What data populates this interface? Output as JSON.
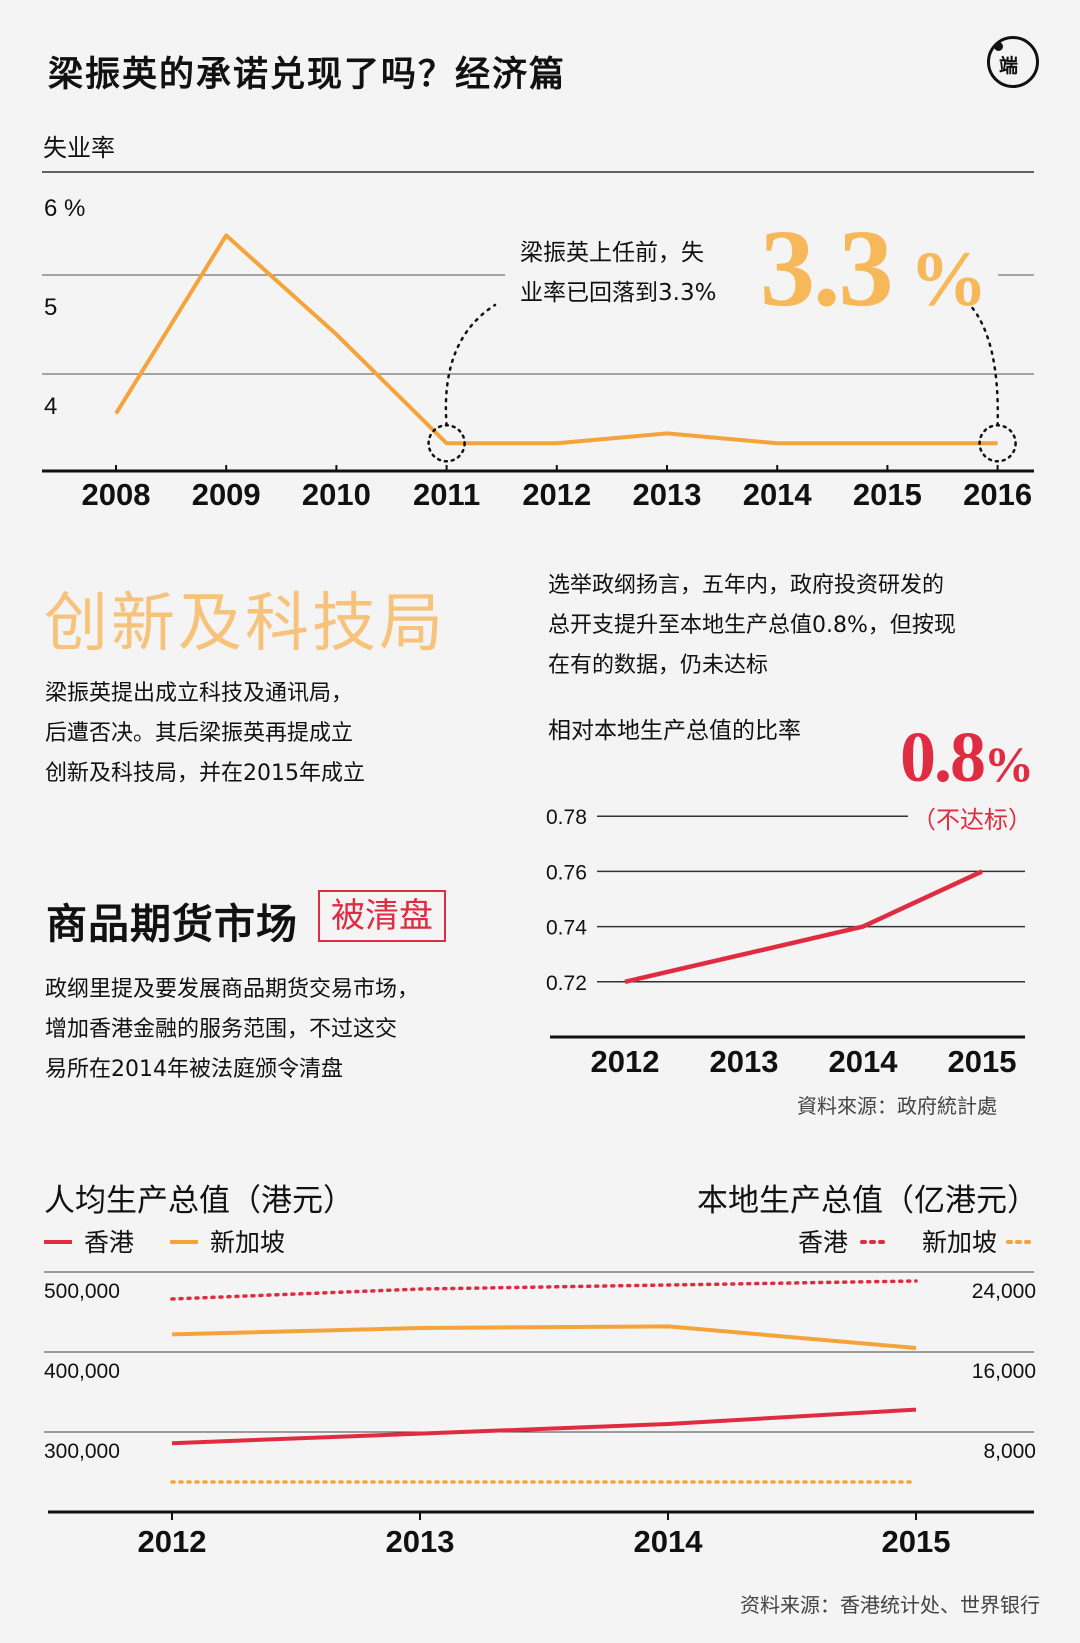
{
  "title": "梁振英的承诺兑现了吗？经济篇",
  "logo_text": "端",
  "chart_data": [
    {
      "type": "line",
      "title": "",
      "ylabel": "失业率",
      "x": [
        "2008",
        "2009",
        "2010",
        "2011",
        "2012",
        "2013",
        "2014",
        "2015",
        "2016"
      ],
      "values": [
        3.6,
        5.4,
        4.4,
        3.3,
        3.3,
        3.4,
        3.3,
        3.3,
        3.3
      ],
      "ylim": [
        3,
        6
      ],
      "yticks": [
        "6 %",
        "5",
        "4"
      ],
      "ytick_values": [
        6,
        5,
        4
      ],
      "annotation": "梁振英上任前，失业率已回落到3.3%",
      "annotation_lines": [
        "梁振英上任前，失",
        "业率已回落到3.3%"
      ],
      "highlight_value": "3.3",
      "highlight_unit": "%",
      "color": "#f4a43a"
    },
    {
      "type": "line",
      "title": "相对本地生产总值的比率",
      "x": [
        "2012",
        "2013",
        "2014",
        "2015"
      ],
      "values": [
        0.72,
        0.73,
        0.74,
        0.76
      ],
      "ylim": [
        0.7,
        0.8
      ],
      "yticks": [
        "0.78",
        "0.76",
        "0.74",
        "0.72"
      ],
      "ytick_values": [
        0.78,
        0.76,
        0.74,
        0.72
      ],
      "target_value": "0.8",
      "target_unit": "%",
      "target_note": "（不达标）",
      "color": "#e02c41",
      "source": "資料來源：政府統計處"
    },
    {
      "type": "line",
      "title_left": "人均生产总值（港元）",
      "title_right": "本地生产总值（亿港元）",
      "x": [
        "2012",
        "2013",
        "2014",
        "2015"
      ],
      "ylim_left": [
        200000,
        500000
      ],
      "ylim_right": [
        0,
        24000
      ],
      "yticks_left": [
        "500,000",
        "400,000",
        "300,000"
      ],
      "yticks_left_values": [
        500000,
        400000,
        300000
      ],
      "yticks_right": [
        "24,000",
        "16,000",
        "8,000"
      ],
      "series": [
        {
          "name": "香港",
          "axis": "left",
          "style": "solid",
          "color": "#e02c41",
          "values": [
            286000,
            298000,
            310000,
            328000
          ]
        },
        {
          "name": "新加坡",
          "axis": "left",
          "style": "solid",
          "color": "#f4a43a",
          "values": [
            422000,
            430000,
            432000,
            405000
          ]
        },
        {
          "name": "香港",
          "axis": "right",
          "style": "dotted",
          "color": "#e02c41",
          "values": [
            21300,
            22300,
            22700,
            23100
          ]
        },
        {
          "name": "新加坡",
          "axis": "right",
          "style": "dotted",
          "color": "#f4a43a",
          "values": [
            3000,
            3000,
            3000,
            3000
          ]
        }
      ],
      "source": "资料来源：香港统计处、世界银行"
    }
  ],
  "innovation": {
    "heading": "创新及科技局",
    "lines": [
      "梁振英提出成立科技及通讯局，",
      "后遭否决。其后梁振英再提成立",
      "创新及科技局，并在2015年成立"
    ]
  },
  "rd": {
    "lines": [
      "选举政纲扬言，五年内，政府投资研发的",
      "总开支提升至本地生产总值0.8%，但按现",
      "在有的数据，仍未达标"
    ]
  },
  "commodity": {
    "heading": "商品期货市场",
    "badge": "被清盘",
    "lines": [
      "政纲里提及要发展商品期货交易市场，",
      "增加香港金融的服务范围，不过这交",
      "易所在2014年被法庭颁令清盘"
    ]
  }
}
